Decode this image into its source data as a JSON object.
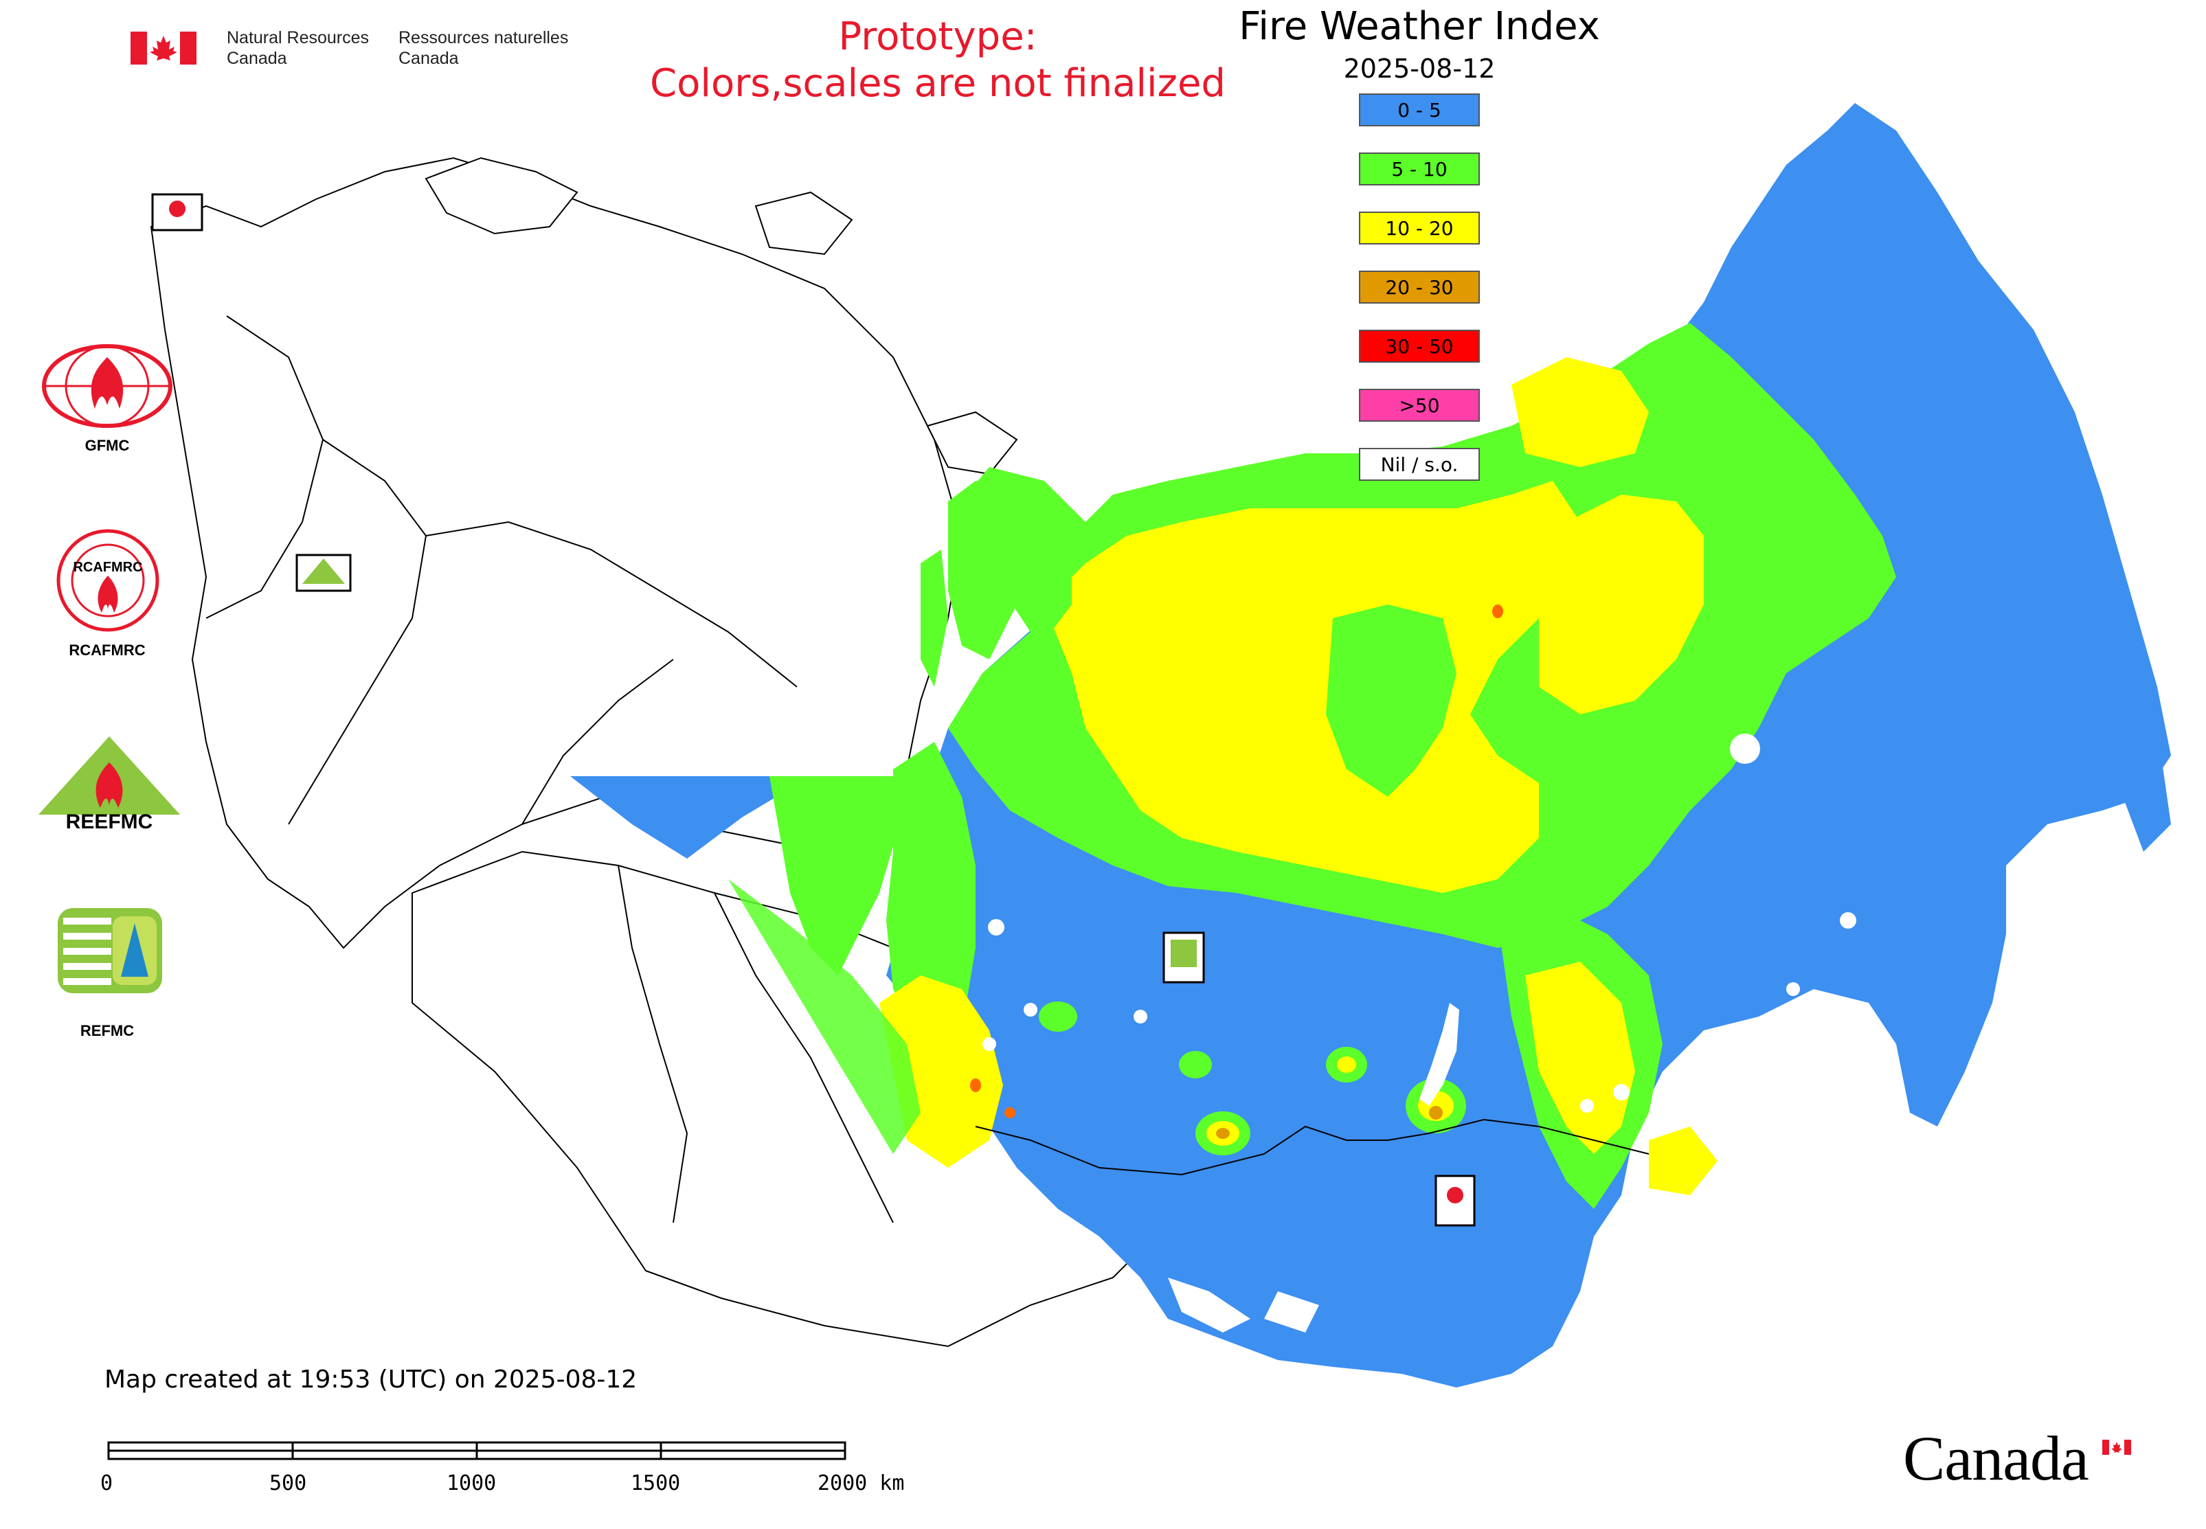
{
  "header": {
    "nrcan_en_line1": "Natural Resources",
    "nrcan_en_line2": "Canada",
    "nrcan_fr_line1": "Ressources naturelles",
    "nrcan_fr_line2": "Canada",
    "prototype_line1": "Prototype:",
    "prototype_line2": "Colors,scales are not finalized",
    "title": "Fire Weather Index",
    "date": "2025-08-12"
  },
  "legend": {
    "items": [
      {
        "label": "0 - 5",
        "color": "#3d8ff0"
      },
      {
        "label": "5 - 10",
        "color": "#5cff29"
      },
      {
        "label": "10 - 20",
        "color": "#ffff00"
      },
      {
        "label": "20 - 30",
        "color": "#e09a00"
      },
      {
        "label": "30 - 50",
        "color": "#ff0000"
      },
      {
        "label": ">50",
        "color": "#ff3fa8"
      },
      {
        "label": "Nil / s.o.",
        "color": "#ffffff"
      }
    ]
  },
  "logos": {
    "gfmc": "GFMC",
    "rcafmrc": "RCAFMRC",
    "reefmc": "REEFMC",
    "refmc": "REFMC",
    "reefmc_logo_text": "REEFMC"
  },
  "footer": {
    "created": "Map created at 19:53 (UTC) on 2025-08-12",
    "scale_ticks": [
      "0",
      "500",
      "1000",
      "1500",
      "2000 km"
    ],
    "wordmark": "Canada"
  },
  "colors": {
    "accent_red": "#e8192c",
    "blue": "#3d8ff0",
    "green": "#5cff29",
    "yellow": "#ffff00",
    "orange": "#e09a00"
  }
}
